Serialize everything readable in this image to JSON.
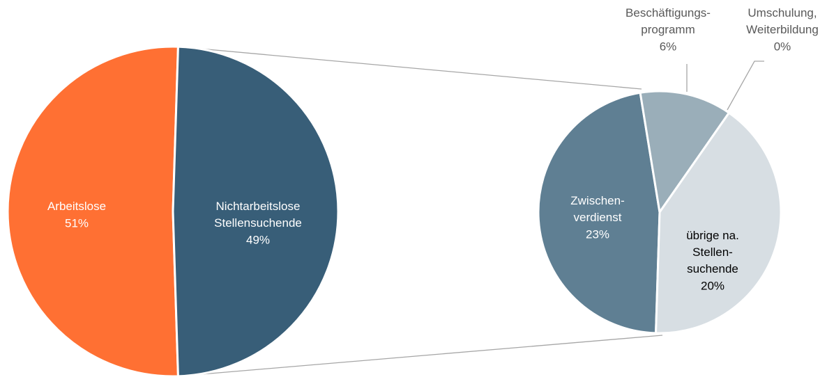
{
  "chart_data": [
    {
      "type": "pie",
      "categories": [
        "Arbeitslose",
        "Nichtarbeitslose\nStellensuchende"
      ],
      "values": [
        51,
        49
      ],
      "value_labels": [
        "51%",
        "49%"
      ],
      "colors": [
        "#ff7033",
        "#385e78"
      ]
    },
    {
      "type": "pie",
      "categories": [
        "Zwischen-\nverdienst",
        "Beschäftigungs-\nprogramm",
        "Umschulung,\nWeiterbildung",
        "übrige na.\nStellen-\nsuchende"
      ],
      "values": [
        23,
        6,
        0,
        20
      ],
      "value_labels": [
        "23%",
        "6%",
        "0%",
        "20%"
      ],
      "colors": [
        "#5f7f93",
        "#9aaeb9",
        "#c0ccd3",
        "#d7dee3"
      ]
    }
  ]
}
